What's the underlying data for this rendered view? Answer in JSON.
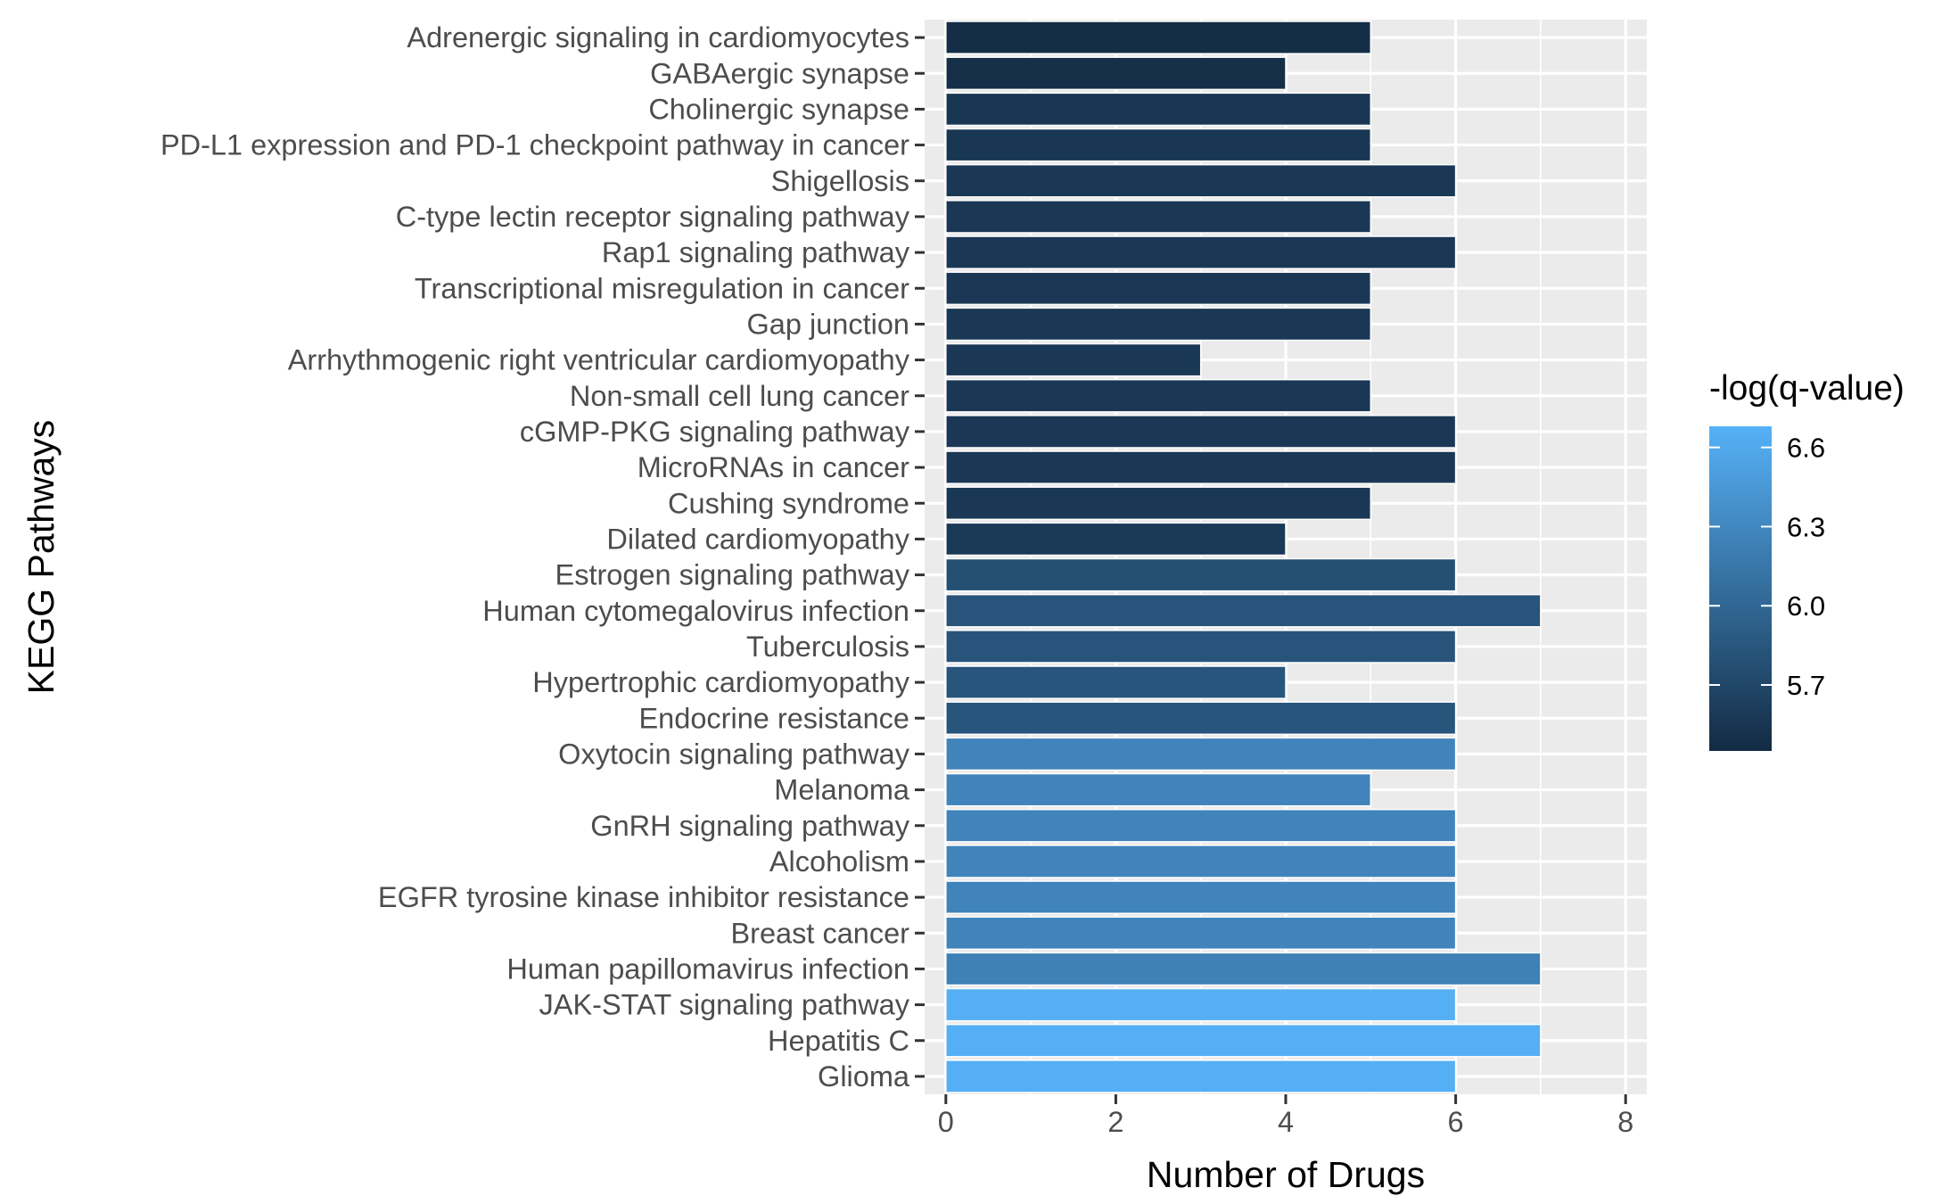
{
  "chart_data": {
    "type": "bar",
    "orientation": "horizontal",
    "xlabel": "Number of Drugs",
    "ylabel": "KEGG Pathways",
    "xlim": [
      -0.25,
      8.25
    ],
    "xticks": [
      0,
      2,
      4,
      6,
      8
    ],
    "grid": true,
    "legend_title": "-log(q-value)",
    "legend_position": "right",
    "legend_ticks": [
      5.7,
      6.0,
      6.3,
      6.6
    ],
    "color_range": [
      5.45,
      6.68
    ],
    "color_low": "#132b43",
    "color_high": "#56b1f7",
    "panel_background": "#ebebeb",
    "categories": [
      "Adrenergic signaling in cardiomyocytes",
      "GABAergic synapse",
      "Cholinergic synapse",
      "PD-L1 expression and PD-1 checkpoint pathway in cancer",
      "Shigellosis",
      "C-type lectin receptor signaling pathway",
      "Rap1 signaling pathway",
      "Transcriptional misregulation in cancer",
      "Gap junction",
      "Arrhythmogenic right ventricular cardiomyopathy",
      "Non-small cell lung cancer",
      "cGMP-PKG signaling pathway",
      "MicroRNAs in cancer",
      "Cushing syndrome",
      "Dilated cardiomyopathy",
      "Estrogen signaling pathway",
      "Human cytomegalovirus infection",
      "Tuberculosis",
      "Hypertrophic cardiomyopathy",
      "Endocrine resistance",
      "Oxytocin signaling pathway",
      "Melanoma",
      "GnRH signaling pathway",
      "Alcoholism",
      "EGFR tyrosine kinase inhibitor resistance",
      "Breast cancer",
      "Human papillomavirus infection",
      "JAK-STAT signaling pathway",
      "Hepatitis C",
      "Glioma"
    ],
    "values": [
      5,
      4,
      5,
      5,
      6,
      5,
      6,
      5,
      5,
      3,
      5,
      6,
      6,
      5,
      4,
      6,
      7,
      6,
      4,
      6,
      6,
      5,
      6,
      6,
      6,
      6,
      7,
      6,
      7,
      6
    ],
    "color_values": [
      5.48,
      5.49,
      5.56,
      5.56,
      5.57,
      5.57,
      5.57,
      5.57,
      5.57,
      5.57,
      5.57,
      5.57,
      5.57,
      5.57,
      5.58,
      5.78,
      5.83,
      5.83,
      5.84,
      5.84,
      6.27,
      6.27,
      6.27,
      6.27,
      6.27,
      6.27,
      6.24,
      6.66,
      6.66,
      6.66
    ]
  }
}
